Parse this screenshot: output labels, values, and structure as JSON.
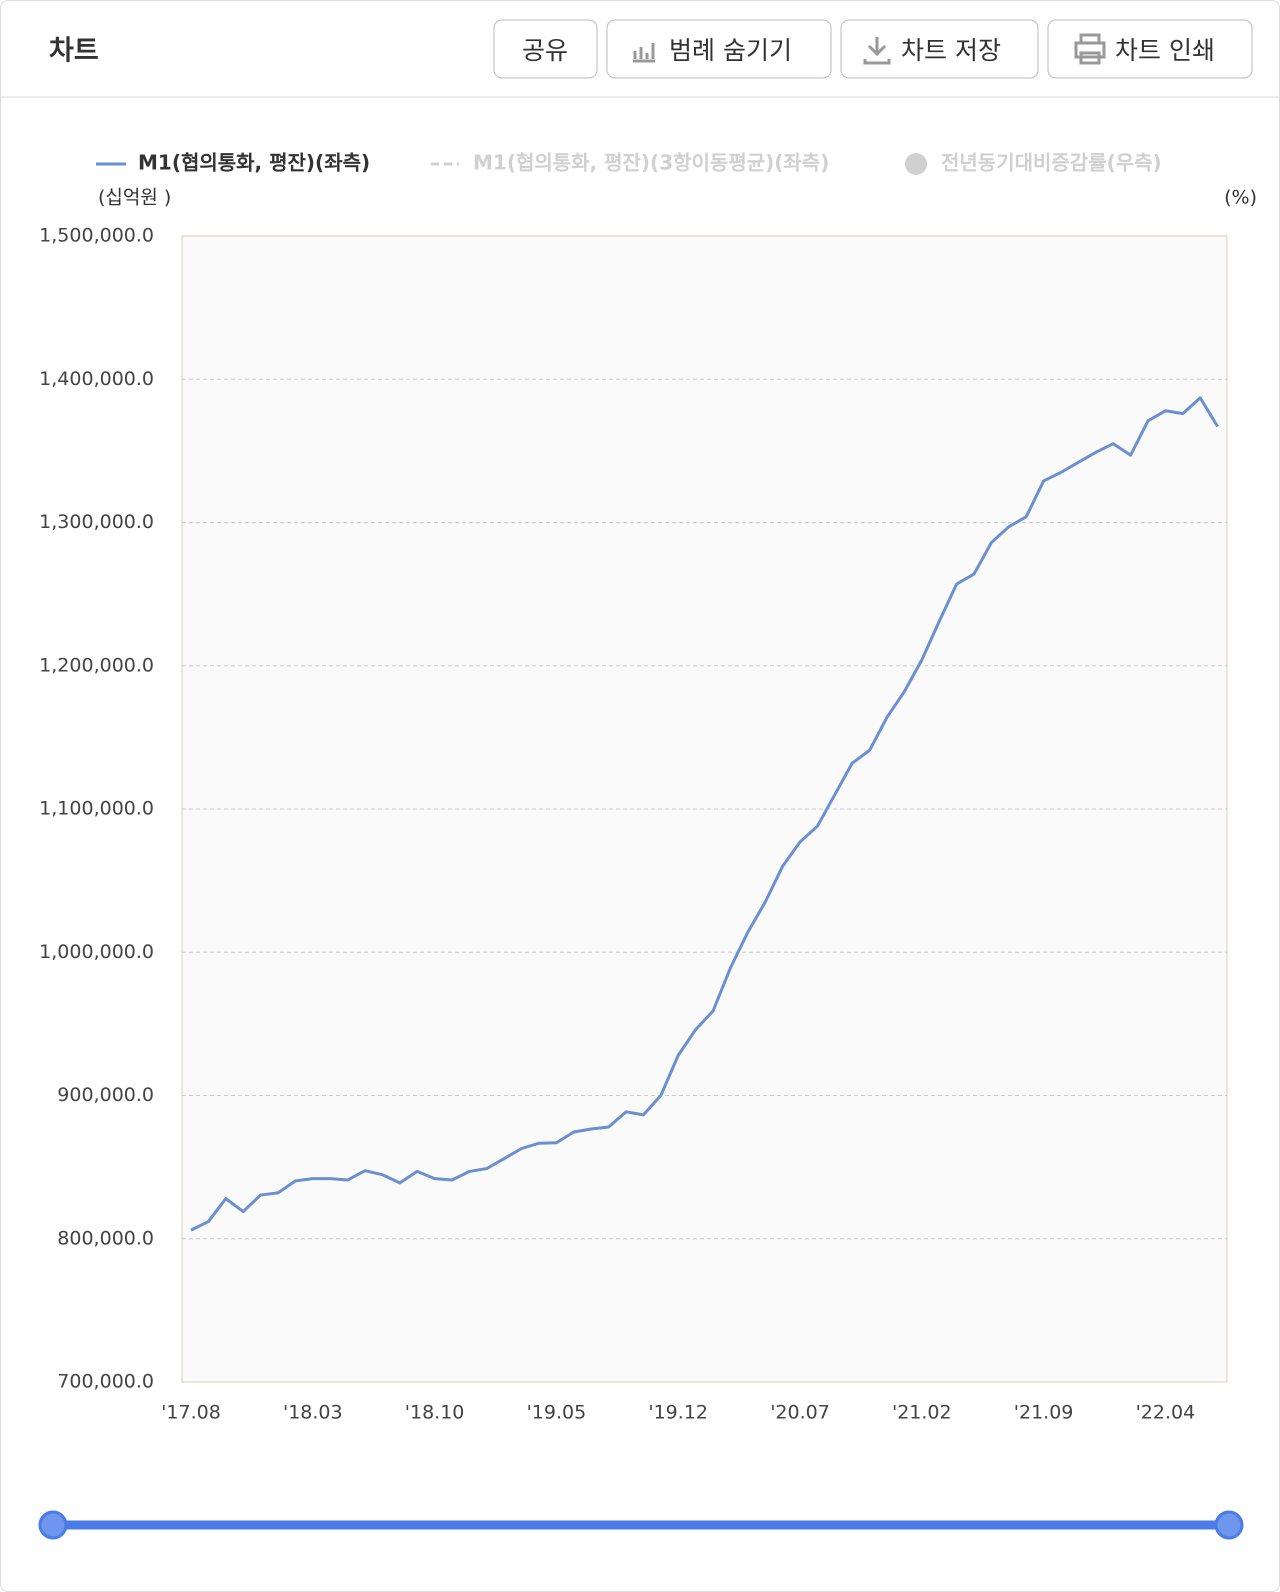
{
  "header": {
    "title": "차트",
    "buttons": [
      "공유",
      "범례 숨기기",
      "차트 저장",
      "차트 인쇄"
    ]
  },
  "chart_data": {
    "type": "line",
    "y_unit_left": "(십억원 )",
    "y_unit_right": "(%)",
    "categories": [
      "'17.08",
      null,
      null,
      null,
      null,
      null,
      null,
      "'18.03",
      null,
      null,
      null,
      null,
      null,
      null,
      "'18.10",
      null,
      null,
      null,
      null,
      null,
      null,
      "'19.05",
      null,
      null,
      null,
      null,
      null,
      null,
      "'19.12",
      null,
      null,
      null,
      null,
      null,
      null,
      "'20.07",
      null,
      null,
      null,
      null,
      null,
      null,
      "'21.02",
      null,
      null,
      null,
      null,
      null,
      null,
      "'21.09",
      null,
      null,
      null,
      null,
      null,
      null,
      "'22.04",
      null,
      null,
      null
    ],
    "series": [
      {
        "name": "M1(협의통화, 평잔)(좌측)",
        "color": "#6b8fd0",
        "values": [
          806000,
          812000,
          828000,
          819000,
          830500,
          832000,
          840400,
          842000,
          842000,
          841000,
          847500,
          844700,
          839000,
          847000,
          842000,
          841000,
          847000,
          849000,
          856000,
          863000,
          866700,
          867000,
          874500,
          876600,
          878000,
          888600,
          886500,
          900000,
          928000,
          946000,
          958900,
          989000,
          1014000,
          1035000,
          1060000,
          1077000,
          1088000,
          1110000,
          1132000,
          1141000,
          1164000,
          1182000,
          1204000,
          1231000,
          1257000,
          1264000,
          1286000,
          1297000,
          1304000,
          1329000,
          1335000,
          1342000,
          1349000,
          1355000,
          1347000,
          1371000,
          1378000,
          1376000,
          1387000,
          1367000
        ]
      }
    ],
    "hidden_series": [
      {
        "name": "M1(협의통화, 평잔)(3항이동평균)(좌측)",
        "color": "#d0d0d0"
      },
      {
        "name": "전년동기대비증감률(우측)",
        "color": "#d0d0d0"
      }
    ],
    "ylim": [
      700000,
      1500000
    ],
    "yticks": [
      {
        "value": 700000,
        "label": "700,000.0"
      },
      {
        "value": 800000,
        "label": "800,000.0"
      },
      {
        "value": 900000,
        "label": "900,000.0"
      },
      {
        "value": 1000000,
        "label": "1,000,000.0"
      },
      {
        "value": 1100000,
        "label": "1,100,000.0"
      },
      {
        "value": 1200000,
        "label": "1,200,000.0"
      },
      {
        "value": 1300000,
        "label": "1,300,000.0"
      },
      {
        "value": 1400000,
        "label": "1,400,000.0"
      },
      {
        "value": 1500000,
        "label": "1,500,000.0"
      }
    ],
    "grid": true
  }
}
